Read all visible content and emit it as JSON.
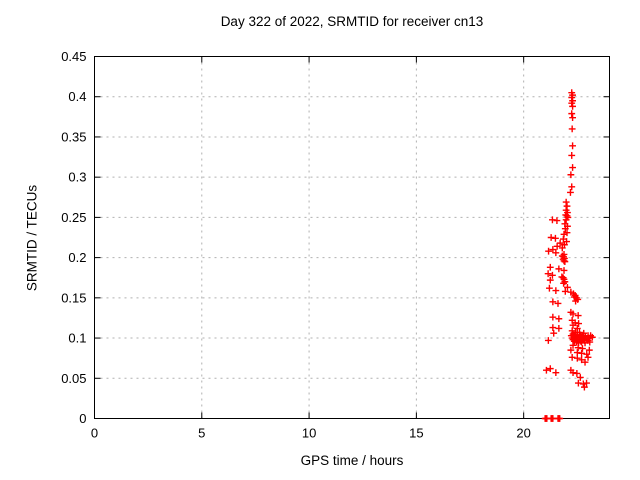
{
  "figure": {
    "title": "Day 322 of 2022, SRMTID for receiver cn13",
    "xlabel": "GPS time / hours",
    "ylabel": "SRMTID / TECUs"
  },
  "colors": {
    "marker": "#ff0000",
    "grid": "#b0b0b0",
    "axis": "#000000",
    "background": "#ffffff"
  },
  "chart_data": {
    "type": "scatter",
    "title": "Day 322 of 2022, SRMTID for receiver cn13",
    "xlabel": "GPS time / hours",
    "ylabel": "SRMTID / TECUs",
    "xlim": [
      0,
      24
    ],
    "ylim": [
      0,
      0.45
    ],
    "xticks": {
      "values": [
        0,
        5,
        10,
        15,
        20
      ],
      "labels": [
        "0",
        "5",
        "10",
        "15",
        "20"
      ]
    },
    "yticks": {
      "values": [
        0,
        0.05,
        0.1,
        0.15,
        0.2,
        0.25,
        0.3,
        0.35,
        0.4,
        0.45
      ],
      "labels": [
        "0",
        "0.05",
        "0.1",
        "0.15",
        "0.2",
        "0.25",
        "0.3",
        "0.35",
        "0.4",
        "0.45"
      ]
    },
    "grid": true,
    "legend": false,
    "marker": "plus",
    "marker_color": "#ff0000",
    "series": [
      {
        "name": "SRMTID",
        "points": [
          [
            21.0,
            0
          ],
          [
            21.04,
            0
          ],
          [
            21.08,
            0
          ],
          [
            21.28,
            0
          ],
          [
            21.32,
            0
          ],
          [
            21.36,
            0
          ],
          [
            21.6,
            0
          ],
          [
            21.64,
            0
          ],
          [
            21.68,
            0
          ],
          [
            22.24,
            0.405
          ],
          [
            22.28,
            0.402
          ],
          [
            22.24,
            0.399
          ],
          [
            22.28,
            0.395
          ],
          [
            22.24,
            0.392
          ],
          [
            22.28,
            0.388
          ],
          [
            22.24,
            0.379
          ],
          [
            22.28,
            0.374
          ],
          [
            22.26,
            0.36
          ],
          [
            22.28,
            0.339
          ],
          [
            22.24,
            0.327
          ],
          [
            22.28,
            0.312
          ],
          [
            22.2,
            0.303
          ],
          [
            22.24,
            0.288
          ],
          [
            22.18,
            0.281
          ],
          [
            21.98,
            0.269
          ],
          [
            22.02,
            0.264
          ],
          [
            21.98,
            0.259
          ],
          [
            22.04,
            0.256
          ],
          [
            21.96,
            0.253
          ],
          [
            22.02,
            0.252
          ],
          [
            22.06,
            0.25
          ],
          [
            21.98,
            0.247
          ],
          [
            21.34,
            0.247
          ],
          [
            21.55,
            0.246
          ],
          [
            21.92,
            0.242
          ],
          [
            22.04,
            0.239
          ],
          [
            21.94,
            0.236
          ],
          [
            22.02,
            0.231
          ],
          [
            21.88,
            0.229
          ],
          [
            21.28,
            0.225
          ],
          [
            21.48,
            0.224
          ],
          [
            21.85,
            0.223
          ],
          [
            22.0,
            0.22
          ],
          [
            21.7,
            0.218
          ],
          [
            21.9,
            0.216
          ],
          [
            21.56,
            0.214
          ],
          [
            21.8,
            0.212
          ],
          [
            21.36,
            0.21
          ],
          [
            21.16,
            0.208
          ],
          [
            21.5,
            0.206
          ],
          [
            21.88,
            0.204
          ],
          [
            21.8,
            0.202
          ],
          [
            21.86,
            0.201
          ],
          [
            21.9,
            0.199
          ],
          [
            21.84,
            0.198
          ],
          [
            21.88,
            0.196
          ],
          [
            21.92,
            0.195
          ],
          [
            21.24,
            0.188
          ],
          [
            21.64,
            0.186
          ],
          [
            21.88,
            0.184
          ],
          [
            21.14,
            0.18
          ],
          [
            21.34,
            0.178
          ],
          [
            21.78,
            0.176
          ],
          [
            21.84,
            0.175
          ],
          [
            21.88,
            0.173
          ],
          [
            21.24,
            0.172
          ],
          [
            21.92,
            0.17
          ],
          [
            21.86,
            0.168
          ],
          [
            22.04,
            0.163
          ],
          [
            21.2,
            0.162
          ],
          [
            21.5,
            0.159
          ],
          [
            21.94,
            0.158
          ],
          [
            22.2,
            0.157
          ],
          [
            22.32,
            0.155
          ],
          [
            22.4,
            0.153
          ],
          [
            22.36,
            0.151
          ],
          [
            22.46,
            0.15
          ],
          [
            22.52,
            0.148
          ],
          [
            22.42,
            0.146
          ],
          [
            21.36,
            0.145
          ],
          [
            21.6,
            0.143
          ],
          [
            22.2,
            0.132
          ],
          [
            22.3,
            0.13
          ],
          [
            22.54,
            0.128
          ],
          [
            21.36,
            0.126
          ],
          [
            21.64,
            0.124
          ],
          [
            22.26,
            0.122
          ],
          [
            22.4,
            0.119
          ],
          [
            22.56,
            0.118
          ],
          [
            22.3,
            0.116
          ],
          [
            21.36,
            0.113
          ],
          [
            21.64,
            0.112
          ],
          [
            22.5,
            0.112
          ],
          [
            22.26,
            0.109
          ],
          [
            21.4,
            0.106
          ],
          [
            21.15,
            0.097
          ],
          [
            22.22,
            0.103
          ],
          [
            22.26,
            0.1
          ],
          [
            22.3,
            0.105
          ],
          [
            22.3,
            0.098
          ],
          [
            22.34,
            0.102
          ],
          [
            22.36,
            0.096
          ],
          [
            22.4,
            0.104
          ],
          [
            22.4,
            0.099
          ],
          [
            22.44,
            0.101
          ],
          [
            22.46,
            0.095
          ],
          [
            22.5,
            0.103
          ],
          [
            22.5,
            0.097
          ],
          [
            22.54,
            0.1
          ],
          [
            22.56,
            0.094
          ],
          [
            22.6,
            0.102
          ],
          [
            22.6,
            0.098
          ],
          [
            22.64,
            0.104
          ],
          [
            22.66,
            0.096
          ],
          [
            22.7,
            0.101
          ],
          [
            22.7,
            0.095
          ],
          [
            22.74,
            0.103
          ],
          [
            22.76,
            0.098
          ],
          [
            22.8,
            0.1
          ],
          [
            22.84,
            0.097
          ],
          [
            22.88,
            0.102
          ],
          [
            22.94,
            0.099
          ],
          [
            23.0,
            0.103
          ],
          [
            23.04,
            0.1
          ],
          [
            22.86,
            0.094
          ],
          [
            23.12,
            0.103
          ],
          [
            23.2,
            0.101
          ],
          [
            22.42,
            0.107
          ],
          [
            22.6,
            0.107
          ],
          [
            22.8,
            0.106
          ],
          [
            23.0,
            0.097
          ],
          [
            23.08,
            0.095
          ],
          [
            22.3,
            0.091
          ],
          [
            22.54,
            0.088
          ],
          [
            22.74,
            0.087
          ],
          [
            22.2,
            0.085
          ],
          [
            22.5,
            0.082
          ],
          [
            22.7,
            0.081
          ],
          [
            22.94,
            0.08
          ],
          [
            23.06,
            0.085
          ],
          [
            22.26,
            0.076
          ],
          [
            22.5,
            0.075
          ],
          [
            22.7,
            0.073
          ],
          [
            22.86,
            0.07
          ],
          [
            23.0,
            0.076
          ],
          [
            21.24,
            0.062
          ],
          [
            21.06,
            0.06
          ],
          [
            21.5,
            0.057
          ],
          [
            22.2,
            0.06
          ],
          [
            22.3,
            0.057
          ],
          [
            22.48,
            0.056
          ],
          [
            22.64,
            0.051
          ],
          [
            22.55,
            0.044
          ],
          [
            22.93,
            0.044
          ],
          [
            22.78,
            0.043
          ],
          [
            22.83,
            0.039
          ]
        ]
      }
    ]
  }
}
